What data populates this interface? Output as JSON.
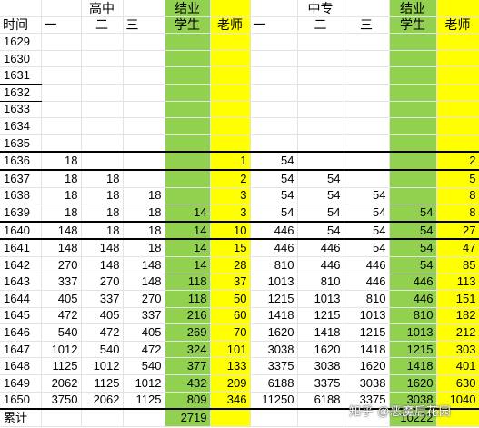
{
  "header": {
    "group_high": "高中",
    "group_mid": "中专",
    "grad_label_1": "结业",
    "grad_label_2": "结业",
    "col_time": "时间",
    "col_h1": "一",
    "col_h2": "二",
    "col_h3": "三",
    "col_student_1": "学生",
    "col_teacher_1": "老师",
    "col_m1": "一",
    "col_m2": "二",
    "col_m3": "三",
    "col_student_2": "学生",
    "col_teacher_2": "老师"
  },
  "rows": [
    {
      "year": "1629",
      "h1": "",
      "h2": "",
      "h3": "",
      "s1": "",
      "t1": "",
      "m1": "",
      "m2": "",
      "m3": "",
      "s2": "",
      "t2": ""
    },
    {
      "year": "1630",
      "h1": "",
      "h2": "",
      "h3": "",
      "s1": "",
      "t1": "",
      "m1": "",
      "m2": "",
      "m3": "",
      "s2": "",
      "t2": ""
    },
    {
      "year": "1631",
      "h1": "",
      "h2": "",
      "h3": "",
      "s1": "",
      "t1": "",
      "m1": "",
      "m2": "",
      "m3": "",
      "s2": "",
      "t2": ""
    },
    {
      "year": "1632",
      "h1": "",
      "h2": "",
      "h3": "",
      "s1": "",
      "t1": "",
      "m1": "",
      "m2": "",
      "m3": "",
      "s2": "",
      "t2": ""
    },
    {
      "year": "1633",
      "h1": "",
      "h2": "",
      "h3": "",
      "s1": "",
      "t1": "",
      "m1": "",
      "m2": "",
      "m3": "",
      "s2": "",
      "t2": ""
    },
    {
      "year": "1634",
      "h1": "",
      "h2": "",
      "h3": "",
      "s1": "",
      "t1": "",
      "m1": "",
      "m2": "",
      "m3": "",
      "s2": "",
      "t2": ""
    },
    {
      "year": "1635",
      "h1": "",
      "h2": "",
      "h3": "",
      "s1": "",
      "t1": "",
      "m1": "",
      "m2": "",
      "m3": "",
      "s2": "",
      "t2": ""
    },
    {
      "year": "1636",
      "h1": "18",
      "h2": "",
      "h3": "",
      "s1": "",
      "t1": "1",
      "m1": "54",
      "m2": "",
      "m3": "",
      "s2": "",
      "t2": "2"
    },
    {
      "year": "1637",
      "h1": "18",
      "h2": "18",
      "h3": "",
      "s1": "",
      "t1": "2",
      "m1": "54",
      "m2": "54",
      "m3": "",
      "s2": "",
      "t2": "5"
    },
    {
      "year": "1638",
      "h1": "18",
      "h2": "18",
      "h3": "18",
      "s1": "",
      "t1": "3",
      "m1": "54",
      "m2": "54",
      "m3": "54",
      "s2": "",
      "t2": "8"
    },
    {
      "year": "1639",
      "h1": "18",
      "h2": "18",
      "h3": "18",
      "s1": "14",
      "t1": "3",
      "m1": "54",
      "m2": "54",
      "m3": "54",
      "s2": "54",
      "t2": "8"
    },
    {
      "year": "1640",
      "h1": "148",
      "h2": "18",
      "h3": "18",
      "s1": "14",
      "t1": "10",
      "m1": "446",
      "m2": "54",
      "m3": "54",
      "s2": "54",
      "t2": "27"
    },
    {
      "year": "1641",
      "h1": "148",
      "h2": "148",
      "h3": "18",
      "s1": "14",
      "t1": "15",
      "m1": "446",
      "m2": "446",
      "m3": "54",
      "s2": "54",
      "t2": "47"
    },
    {
      "year": "1642",
      "h1": "270",
      "h2": "148",
      "h3": "148",
      "s1": "14",
      "t1": "28",
      "m1": "810",
      "m2": "446",
      "m3": "446",
      "s2": "54",
      "t2": "85"
    },
    {
      "year": "1643",
      "h1": "337",
      "h2": "270",
      "h3": "148",
      "s1": "118",
      "t1": "37",
      "m1": "1013",
      "m2": "810",
      "m3": "446",
      "s2": "446",
      "t2": "113"
    },
    {
      "year": "1644",
      "h1": "405",
      "h2": "337",
      "h3": "270",
      "s1": "118",
      "t1": "50",
      "m1": "1215",
      "m2": "1013",
      "m3": "810",
      "s2": "446",
      "t2": "151"
    },
    {
      "year": "1645",
      "h1": "472",
      "h2": "405",
      "h3": "337",
      "s1": "216",
      "t1": "60",
      "m1": "1418",
      "m2": "1215",
      "m3": "1013",
      "s2": "810",
      "t2": "182"
    },
    {
      "year": "1646",
      "h1": "540",
      "h2": "472",
      "h3": "405",
      "s1": "269",
      "t1": "70",
      "m1": "1620",
      "m1b": "",
      "m2": "1418",
      "m3": "1215",
      "s2": "1013",
      "t2": "212"
    },
    {
      "year": "1647",
      "h1": "1012",
      "h2": "540",
      "h3": "472",
      "s1": "324",
      "t1": "101",
      "m1": "3038",
      "m2": "1620",
      "m3": "1418",
      "s2": "1215",
      "t2": "303"
    },
    {
      "year": "1648",
      "h1": "1125",
      "h2": "1012",
      "h3": "540",
      "s1": "377",
      "t1": "133",
      "m1": "3375",
      "m2": "3038",
      "m3": "1620",
      "s2": "1418",
      "t2": "401"
    },
    {
      "year": "1649",
      "h1": "2062",
      "h2": "1125",
      "h3": "1012",
      "s1": "432",
      "t1": "209",
      "m1": "6188",
      "m2": "3375",
      "m3": "3038",
      "s2": "1620",
      "t2": "630"
    },
    {
      "year": "1650",
      "h1": "3750",
      "h2": "2062",
      "h3": "1125",
      "s1": "809",
      "t1": "346",
      "m1": "11250",
      "m2": "6188",
      "m3": "3375",
      "s2": "3038",
      "t2": "1040"
    }
  ],
  "footer": {
    "label": "累计",
    "total_students_1": "2719",
    "total_students_2": "10222"
  },
  "watermark": "知乎 @恶魔后花园",
  "colors": {
    "green": "#92d050",
    "yellow": "#ffff00",
    "red": "#e0241b",
    "grid": "#e3e3e3"
  }
}
